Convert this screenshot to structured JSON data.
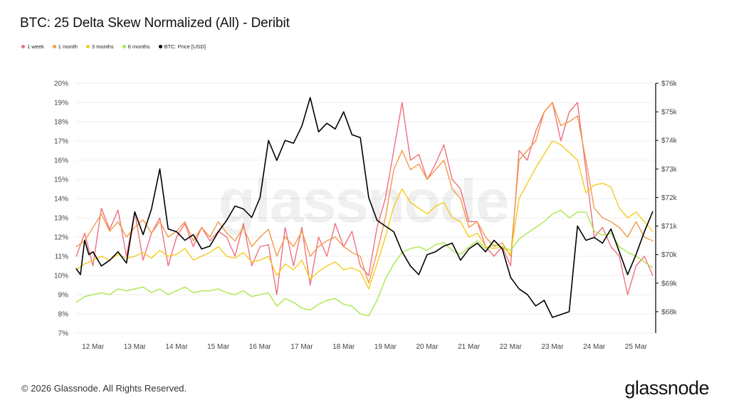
{
  "chart_data": {
    "type": "line",
    "title": "BTC: 25 Delta Skew Normalized (All) - Deribit",
    "watermark": "glassnode",
    "x_ticks": [
      "12 Mar",
      "13 Mar",
      "14 Mar",
      "15 Mar",
      "16 Mar",
      "17 Mar",
      "18 Mar",
      "19 Mar",
      "20 Mar",
      "21 Mar",
      "22 Mar",
      "23 Mar",
      "24 Mar",
      "25 Mar"
    ],
    "left_axis": {
      "ticks": [
        "20%",
        "19%",
        "18%",
        "17%",
        "16%",
        "15%",
        "14%",
        "13%",
        "12%",
        "11%",
        "10%",
        "9%",
        "8%",
        "7%"
      ],
      "ylim": [
        7,
        20
      ]
    },
    "right_axis": {
      "ticks": [
        "$76k",
        "$75k",
        "$74k",
        "$73k",
        "$72k",
        "$71k",
        "$70k",
        "$69k",
        "$68k"
      ],
      "ylim": [
        67250,
        76000
      ]
    },
    "x_range_days": [
      11.58,
      25.42
    ],
    "grid": "horizontal",
    "legend_position": "top-left",
    "series": [
      {
        "name": "1 week",
        "color": "#f07080",
        "axis": "left",
        "x": [
          11.6,
          11.8,
          12.0,
          12.2,
          12.4,
          12.6,
          12.8,
          13.0,
          13.2,
          13.4,
          13.6,
          13.8,
          14.0,
          14.2,
          14.4,
          14.6,
          14.8,
          15.0,
          15.2,
          15.4,
          15.6,
          15.8,
          16.0,
          16.2,
          16.4,
          16.6,
          16.8,
          17.0,
          17.2,
          17.4,
          17.6,
          17.8,
          18.0,
          18.2,
          18.4,
          18.6,
          18.8,
          19.0,
          19.2,
          19.4,
          19.6,
          19.8,
          20.0,
          20.2,
          20.4,
          20.6,
          20.8,
          21.0,
          21.2,
          21.4,
          21.6,
          21.8,
          22.0,
          22.2,
          22.4,
          22.6,
          22.8,
          23.0,
          23.2,
          23.4,
          23.6,
          23.8,
          24.0,
          24.2,
          24.4,
          24.6,
          24.8,
          25.0,
          25.2,
          25.4
        ],
        "values": [
          11.0,
          12.2,
          10.5,
          13.5,
          12.4,
          13.4,
          11.0,
          13.3,
          10.8,
          12.2,
          13.0,
          10.5,
          12.0,
          12.7,
          11.5,
          12.5,
          11.8,
          12.3,
          12.0,
          11.0,
          12.7,
          10.5,
          11.5,
          11.6,
          9.0,
          12.5,
          10.5,
          12.5,
          9.5,
          12.0,
          11.0,
          12.7,
          11.5,
          12.3,
          10.5,
          10.0,
          12.5,
          14.0,
          16.5,
          19.0,
          16.0,
          16.3,
          15.0,
          15.8,
          16.8,
          15.0,
          14.5,
          12.8,
          12.8,
          11.5,
          11.0,
          11.5,
          10.5,
          16.5,
          16.0,
          17.5,
          18.5,
          19.0,
          17.0,
          18.5,
          19.0,
          15.5,
          12.0,
          12.5,
          11.5,
          11.0,
          9.0,
          10.5,
          11.0,
          10.0
        ]
      },
      {
        "name": "1 month",
        "color": "#f39a48",
        "axis": "left",
        "x": [
          11.6,
          11.8,
          12.0,
          12.2,
          12.4,
          12.6,
          12.8,
          13.0,
          13.2,
          13.4,
          13.6,
          13.8,
          14.0,
          14.2,
          14.4,
          14.6,
          14.8,
          15.0,
          15.2,
          15.4,
          15.6,
          15.8,
          16.0,
          16.2,
          16.4,
          16.6,
          16.8,
          17.0,
          17.2,
          17.4,
          17.6,
          17.8,
          18.0,
          18.2,
          18.4,
          18.6,
          18.8,
          19.0,
          19.2,
          19.4,
          19.6,
          19.8,
          20.0,
          20.2,
          20.4,
          20.6,
          20.8,
          21.0,
          21.2,
          21.4,
          21.6,
          21.8,
          22.0,
          22.2,
          22.4,
          22.6,
          22.8,
          23.0,
          23.2,
          23.4,
          23.6,
          23.8,
          24.0,
          24.2,
          24.4,
          24.6,
          24.8,
          25.0,
          25.2,
          25.4
        ],
        "values": [
          11.5,
          11.8,
          12.5,
          13.2,
          12.3,
          12.8,
          12.0,
          12.5,
          12.9,
          12.2,
          12.8,
          12.0,
          12.3,
          12.8,
          11.8,
          12.5,
          12.0,
          12.8,
          12.2,
          11.8,
          12.5,
          11.5,
          12.0,
          12.4,
          11.0,
          12.0,
          11.5,
          12.3,
          11.0,
          11.5,
          11.8,
          12.0,
          11.5,
          11.2,
          11.0,
          9.6,
          11.2,
          13.0,
          15.5,
          16.5,
          15.5,
          15.8,
          15.0,
          15.5,
          16.0,
          14.5,
          14.0,
          12.5,
          12.8,
          12.0,
          11.5,
          11.7,
          11.0,
          16.0,
          16.5,
          17.0,
          18.5,
          19.0,
          17.8,
          18.0,
          18.3,
          16.0,
          13.5,
          13.0,
          12.8,
          12.5,
          12.0,
          12.8,
          12.0,
          11.8
        ]
      },
      {
        "name": "3 months",
        "color": "#f5cc1c",
        "axis": "left",
        "x": [
          11.6,
          11.8,
          12.0,
          12.2,
          12.4,
          12.6,
          12.8,
          13.0,
          13.2,
          13.4,
          13.6,
          13.8,
          14.0,
          14.2,
          14.4,
          14.6,
          14.8,
          15.0,
          15.2,
          15.4,
          15.6,
          15.8,
          16.0,
          16.2,
          16.4,
          16.6,
          16.8,
          17.0,
          17.2,
          17.4,
          17.6,
          17.8,
          18.0,
          18.2,
          18.4,
          18.6,
          18.8,
          19.0,
          19.2,
          19.4,
          19.6,
          19.8,
          20.0,
          20.2,
          20.4,
          20.6,
          20.8,
          21.0,
          21.2,
          21.4,
          21.6,
          21.8,
          22.0,
          22.2,
          22.4,
          22.6,
          22.8,
          23.0,
          23.2,
          23.4,
          23.6,
          23.8,
          24.0,
          24.2,
          24.4,
          24.6,
          24.8,
          25.0,
          25.2,
          25.4
        ],
        "values": [
          10.3,
          10.6,
          10.8,
          11.0,
          10.8,
          11.1,
          10.9,
          11.0,
          11.2,
          10.9,
          11.3,
          11.0,
          11.1,
          11.4,
          10.8,
          11.0,
          11.2,
          11.5,
          11.0,
          10.9,
          11.2,
          10.7,
          10.8,
          11.0,
          10.0,
          10.6,
          10.3,
          10.8,
          9.8,
          10.2,
          10.5,
          10.7,
          10.3,
          10.4,
          10.2,
          9.3,
          10.6,
          12.0,
          13.6,
          14.5,
          13.8,
          13.5,
          13.2,
          13.6,
          13.8,
          13.0,
          12.8,
          12.0,
          12.2,
          11.5,
          11.4,
          11.5,
          11.1,
          14.0,
          14.8,
          15.6,
          16.3,
          17.0,
          16.8,
          16.4,
          16.0,
          14.3,
          14.7,
          14.8,
          14.6,
          13.5,
          13.0,
          13.3,
          12.8,
          12.3
        ]
      },
      {
        "name": "6 months",
        "color": "#a8e84a",
        "axis": "left",
        "x": [
          11.6,
          11.8,
          12.0,
          12.2,
          12.4,
          12.6,
          12.8,
          13.0,
          13.2,
          13.4,
          13.6,
          13.8,
          14.0,
          14.2,
          14.4,
          14.6,
          14.8,
          15.0,
          15.2,
          15.4,
          15.6,
          15.8,
          16.0,
          16.2,
          16.4,
          16.6,
          16.8,
          17.0,
          17.2,
          17.4,
          17.6,
          17.8,
          18.0,
          18.2,
          18.4,
          18.6,
          18.8,
          19.0,
          19.2,
          19.4,
          19.6,
          19.8,
          20.0,
          20.2,
          20.4,
          20.6,
          20.8,
          21.0,
          21.2,
          21.4,
          21.6,
          21.8,
          22.0,
          22.2,
          22.4,
          22.6,
          22.8,
          23.0,
          23.2,
          23.4,
          23.6,
          23.8,
          24.0,
          24.2,
          24.4,
          24.6,
          24.8,
          25.0,
          25.2,
          25.4
        ],
        "values": [
          8.6,
          8.9,
          9.0,
          9.1,
          9.0,
          9.3,
          9.2,
          9.3,
          9.4,
          9.1,
          9.3,
          9.0,
          9.2,
          9.4,
          9.1,
          9.2,
          9.2,
          9.3,
          9.1,
          9.0,
          9.2,
          8.9,
          9.0,
          9.1,
          8.4,
          8.8,
          8.6,
          8.3,
          8.2,
          8.5,
          8.7,
          8.8,
          8.5,
          8.4,
          8.0,
          7.9,
          8.7,
          9.8,
          10.6,
          11.2,
          11.4,
          11.5,
          11.3,
          11.6,
          11.7,
          11.3,
          11.1,
          11.5,
          11.8,
          11.4,
          11.6,
          11.5,
          11.3,
          11.9,
          12.2,
          12.5,
          12.8,
          13.2,
          13.4,
          13.0,
          13.3,
          13.3,
          12.3,
          12.1,
          12.2,
          11.5,
          11.2,
          11.0,
          10.7,
          10.4
        ]
      },
      {
        "name": "BTC: Price [USD]",
        "color": "#000000",
        "axis": "right",
        "x": [
          11.6,
          11.7,
          11.8,
          11.9,
          12.0,
          12.2,
          12.4,
          12.6,
          12.8,
          13.0,
          13.2,
          13.4,
          13.6,
          13.8,
          14.0,
          14.2,
          14.4,
          14.6,
          14.8,
          15.0,
          15.2,
          15.4,
          15.6,
          15.8,
          16.0,
          16.2,
          16.4,
          16.6,
          16.8,
          17.0,
          17.2,
          17.4,
          17.6,
          17.8,
          18.0,
          18.2,
          18.4,
          18.6,
          18.8,
          19.0,
          19.2,
          19.4,
          19.6,
          19.8,
          20.0,
          20.2,
          20.4,
          20.6,
          20.8,
          21.0,
          21.2,
          21.4,
          21.6,
          21.8,
          22.0,
          22.2,
          22.4,
          22.6,
          22.8,
          23.0,
          23.2,
          23.4,
          23.6,
          23.8,
          24.0,
          24.2,
          24.4,
          24.6,
          24.8,
          25.0,
          25.2,
          25.4
        ],
        "values": [
          69.5,
          69.3,
          70.5,
          70.0,
          70.1,
          69.6,
          69.8,
          70.1,
          69.7,
          71.5,
          70.7,
          71.6,
          73.0,
          70.9,
          70.8,
          70.5,
          70.7,
          70.2,
          70.3,
          70.8,
          71.2,
          71.7,
          71.6,
          71.3,
          72.0,
          74.0,
          73.3,
          74.0,
          73.9,
          74.5,
          75.5,
          74.3,
          74.6,
          74.4,
          75.0,
          74.2,
          74.1,
          72.0,
          71.2,
          71.0,
          70.8,
          70.1,
          69.6,
          69.3,
          70.0,
          70.1,
          70.3,
          70.4,
          69.8,
          70.2,
          70.4,
          70.1,
          70.5,
          70.2,
          69.2,
          68.8,
          68.6,
          68.2,
          68.4,
          67.8,
          67.9,
          68.0,
          71.0,
          70.5,
          70.6,
          70.4,
          70.9,
          70.1,
          69.3,
          70.0,
          70.8,
          71.5
        ]
      }
    ]
  },
  "legend": [
    "1 week",
    "1 month",
    "3 months",
    "6 months",
    "BTC: Price [USD]"
  ],
  "footer": {
    "copyright": "© 2026 Glassnode. All Rights Reserved.",
    "logo": "glassnode"
  }
}
